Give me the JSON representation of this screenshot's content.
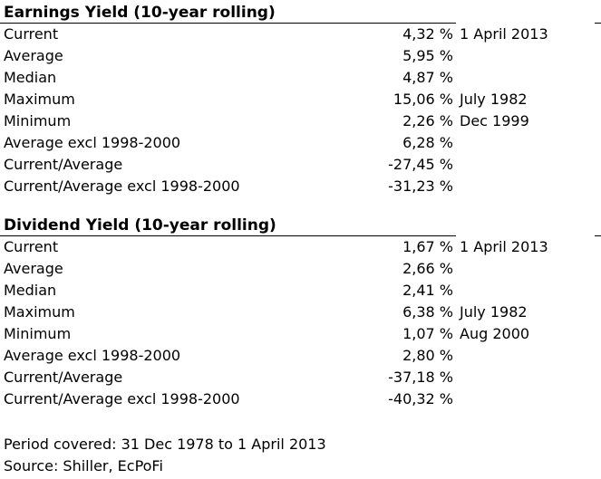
{
  "page": {
    "background_color": "#ffffff",
    "text_color": "#000000",
    "rule_color": "#000000"
  },
  "tables": [
    {
      "title": "Earnings Yield (10-year rolling)",
      "rows": [
        {
          "label": "Current",
          "value": "4,32 %",
          "note": "1 April 2013"
        },
        {
          "label": "Average",
          "value": "5,95 %",
          "note": ""
        },
        {
          "label": "Median",
          "value": "4,87 %",
          "note": ""
        },
        {
          "label": "Maximum",
          "value": "15,06 %",
          "note": "July 1982"
        },
        {
          "label": "Minimum",
          "value": "2,26 %",
          "note": "Dec 1999"
        },
        {
          "label": "Average excl 1998-2000",
          "value": "6,28 %",
          "note": ""
        },
        {
          "label": "Current/Average",
          "value": "-27,45 %",
          "note": ""
        },
        {
          "label": "Current/Average excl 1998-2000",
          "value": "-31,23 %",
          "note": ""
        }
      ]
    },
    {
      "title": "Dividend Yield (10-year rolling)",
      "rows": [
        {
          "label": "Current",
          "value": "1,67 %",
          "note": "1 April 2013"
        },
        {
          "label": "Average",
          "value": "2,66 %",
          "note": ""
        },
        {
          "label": "Median",
          "value": "2,41 %",
          "note": ""
        },
        {
          "label": "Maximum",
          "value": "6,38 %",
          "note": "July 1982"
        },
        {
          "label": "Minimum",
          "value": "1,07 %",
          "note": "Aug 2000"
        },
        {
          "label": "Average excl 1998-2000",
          "value": "2,80 %",
          "note": ""
        },
        {
          "label": "Current/Average",
          "value": "-37,18 %",
          "note": ""
        },
        {
          "label": "Current/Average excl 1998-2000",
          "value": "-40,32 %",
          "note": ""
        }
      ]
    }
  ],
  "footer": {
    "period_line": "Period covered: 31 Dec 1978 to 1 April 2013",
    "source_line": "Source: Shiller, EcPoFi"
  }
}
